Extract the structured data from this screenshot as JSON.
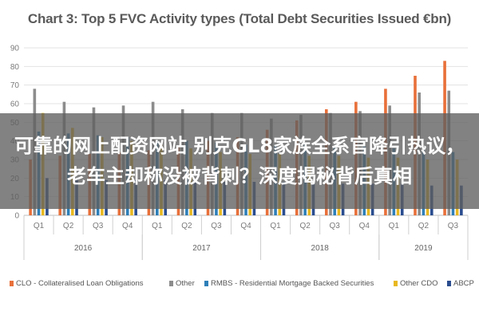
{
  "chart_data": {
    "type": "bar",
    "title": "Chart 3: Top 5 FVC Activity types (Total Debt Securities Issued €bn)",
    "xlabel": "",
    "ylabel": "",
    "ylim": [
      0,
      90
    ],
    "yticks": [
      0,
      10,
      20,
      30,
      40,
      50,
      60,
      70,
      80,
      90
    ],
    "grid": true,
    "legend_position": "bottom",
    "categories": [
      "Q1",
      "Q2",
      "Q3",
      "Q4",
      "Q1",
      "Q2",
      "Q3",
      "Q4",
      "Q1",
      "Q2",
      "Q3",
      "Q4",
      "Q1",
      "Q2",
      "Q3"
    ],
    "year_groups": [
      {
        "label": "2016",
        "count": 4
      },
      {
        "label": "2017",
        "count": 4
      },
      {
        "label": "2018",
        "count": 4
      },
      {
        "label": "2019",
        "count": 3
      }
    ],
    "series": [
      {
        "name": "CLO - Collateralised Loan Obligations",
        "color": "#e8703a",
        "values": [
          30,
          32,
          33,
          34,
          35,
          37,
          40,
          42,
          46,
          51,
          57,
          61,
          68,
          75,
          83
        ]
      },
      {
        "name": "Other",
        "color": "#8c8c8c",
        "values": [
          68,
          61,
          58,
          59,
          61,
          57,
          55,
          55,
          52,
          54,
          55,
          56,
          59,
          66,
          67
        ]
      },
      {
        "name": "RMBS - Residential Mortgage Backed Securities",
        "color": "#2e7fb8",
        "values": [
          45,
          44,
          43,
          42,
          40,
          40,
          39,
          38,
          38,
          38,
          37,
          37,
          36,
          35,
          34
        ]
      },
      {
        "name": "Other CDO",
        "color": "#e8b820",
        "values": [
          55,
          47,
          42,
          40,
          38,
          36,
          34,
          33,
          33,
          32,
          32,
          31,
          31,
          30,
          30
        ]
      },
      {
        "name": "ABCP",
        "color": "#2a4d8f",
        "values": [
          20,
          20,
          19,
          19,
          19,
          18,
          18,
          18,
          18,
          17,
          17,
          17,
          17,
          16,
          16
        ]
      }
    ]
  },
  "overlay": {
    "text": "可靠的网上配资网站 别克GL8家族全系官降引热议，老车主却称没被背刺？深度揭秘背后真相"
  }
}
